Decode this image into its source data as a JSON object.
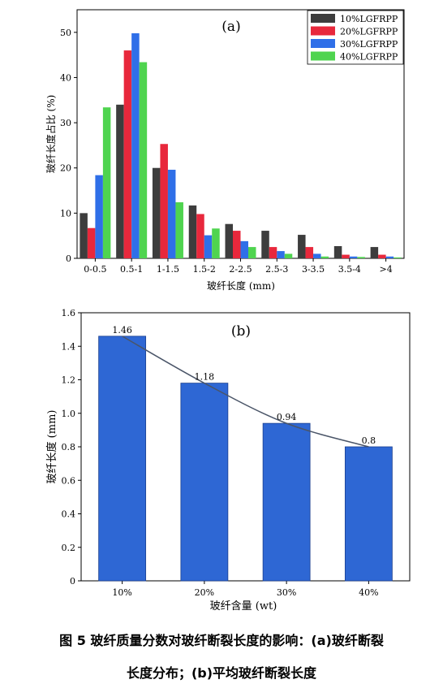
{
  "chart_data": [
    {
      "type": "bar",
      "panel_label": "(a)",
      "xlabel": "玻纤长度 (mm)",
      "ylabel": "玻纤长度占比 (%)",
      "ylim": [
        0,
        55
      ],
      "yticks": [
        0,
        10,
        20,
        30,
        40,
        50
      ],
      "legend_position": "top-right",
      "categories": [
        "0-0.5",
        "0.5-1",
        "1-1.5",
        "1.5-2",
        "2-2.5",
        "2.5-3",
        "3-3.5",
        "3.5-4",
        ">4"
      ],
      "series": [
        {
          "name": "10%LGFRPP",
          "color": "#3d3d3d",
          "values": [
            10,
            34,
            20,
            11.7,
            7.6,
            6.1,
            5.2,
            2.7,
            2.5
          ]
        },
        {
          "name": "20%LGFRPP",
          "color": "#e8283c",
          "values": [
            6.7,
            46,
            25.3,
            9.8,
            6.1,
            2.5,
            2.5,
            0.8,
            0.8
          ]
        },
        {
          "name": "30%LGFRPP",
          "color": "#2f6fe8",
          "values": [
            18.4,
            49.8,
            19.6,
            5.1,
            3.8,
            1.6,
            1.0,
            0.4,
            0.4
          ]
        },
        {
          "name": "40%LGFRPP",
          "color": "#4fd44f",
          "values": [
            33.4,
            43.4,
            12.4,
            6.6,
            2.5,
            1.0,
            0.4,
            0.3,
            0.2
          ]
        }
      ]
    },
    {
      "type": "bar",
      "panel_label": "(b)",
      "xlabel": "玻纤含量 (wt)",
      "ylabel": "玻纤长度 (mm)",
      "ylim": [
        0,
        1.6
      ],
      "yticks": [
        "0",
        "0.2",
        "0.4",
        "0.6",
        "0.8",
        "1.0",
        "1.2",
        "1.4",
        "1.6"
      ],
      "categories": [
        "10%",
        "20%",
        "30%",
        "40%"
      ],
      "values": [
        1.46,
        1.18,
        0.94,
        0.8
      ],
      "data_labels": [
        "1.46",
        "1.18",
        "0.94",
        "0.8"
      ],
      "bar_color": "#2e67d4",
      "trend_line": true
    }
  ],
  "caption": {
    "line1": "图 5  玻纤质量分数对玻纤断裂长度的影响：(a)玻纤断裂",
    "line2": "长度分布；(b)平均玻纤断裂长度"
  }
}
